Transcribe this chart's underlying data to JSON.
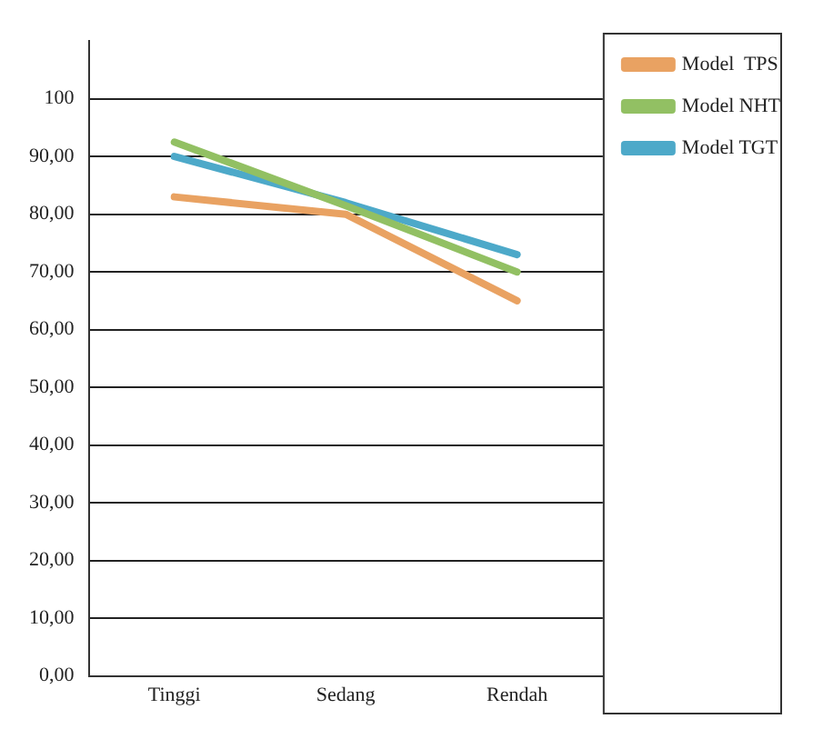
{
  "chart_data": {
    "type": "line",
    "categories": [
      "Tinggi",
      "Sedang",
      "Rendah"
    ],
    "series": [
      {
        "name": "Model  TPS",
        "color": "#e9a262",
        "values": [
          83,
          80,
          65
        ]
      },
      {
        "name": "Model NHT",
        "color": "#92c063",
        "values": [
          92.5,
          81.5,
          70
        ]
      },
      {
        "name": "Model TGT",
        "color": "#4da9c9",
        "values": [
          90,
          82,
          73
        ]
      }
    ],
    "ylim": [
      0,
      110
    ],
    "yticks": [
      {
        "value": 0,
        "label": "0,00"
      },
      {
        "value": 10,
        "label": "10,00"
      },
      {
        "value": 20,
        "label": "20,00"
      },
      {
        "value": 30,
        "label": "30,00"
      },
      {
        "value": 40,
        "label": "40,00"
      },
      {
        "value": 50,
        "label": "50,00"
      },
      {
        "value": 60,
        "label": "60,00"
      },
      {
        "value": 70,
        "label": "70,00"
      },
      {
        "value": 80,
        "label": "80,00"
      },
      {
        "value": 90,
        "label": "90,00"
      },
      100
    ],
    "grid": "y",
    "legend": "right",
    "marker": "none",
    "line_style": "solid"
  }
}
